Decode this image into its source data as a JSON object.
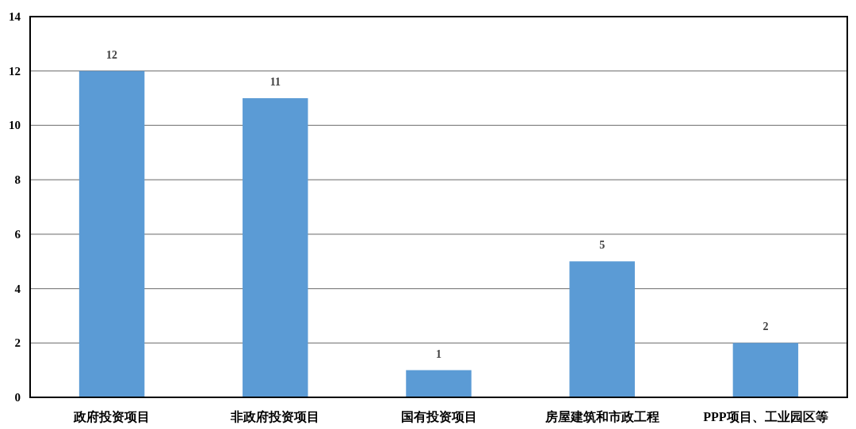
{
  "chart_data": {
    "type": "bar",
    "categories": [
      "政府投资项目",
      "非政府投资项目",
      "国有投资项目",
      "房屋建筑和市政工程",
      "PPP项目、工业园区等"
    ],
    "values": [
      12,
      11,
      1,
      5,
      2
    ],
    "color": "#5b9bd5",
    "ylim": [
      0,
      14
    ],
    "yticks": [
      0,
      2,
      4,
      6,
      8,
      10,
      12,
      14
    ],
    "grid": "y",
    "data_labels": true
  }
}
